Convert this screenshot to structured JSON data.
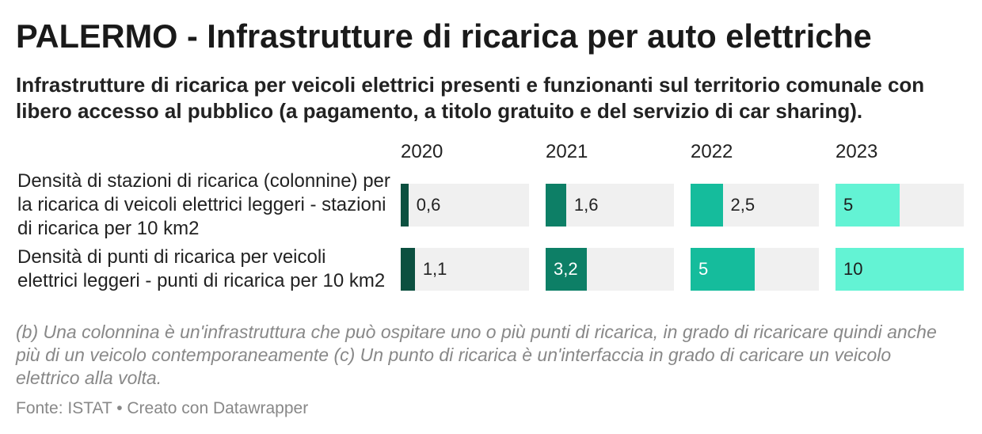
{
  "chart_data": {
    "type": "bar",
    "title": "PALERMO - Infrastrutture di ricarica per auto elettriche",
    "subtitle": "Infrastrutture di ricarica per veicoli elettrici presenti e funzionanti sul territorio comunale con libero accesso al pubblico (a pagamento, a titolo gratuito e del servizio di car sharing).",
    "categories": [
      "2020",
      "2021",
      "2022",
      "2023"
    ],
    "series": [
      {
        "name": "Densità di stazioni di ricarica (colonnine) per\nla ricarica di veicoli elettrici leggeri - stazioni\ndi ricarica per 10 km2",
        "values": [
          0.6,
          1.6,
          2.5,
          5
        ],
        "value_labels": [
          "0,6",
          "1,6",
          "2,5",
          "5"
        ]
      },
      {
        "name": "Densità di punti di ricarica per veicoli\nelettrici leggeri - punti di ricarica per 10 km2",
        "values": [
          1.1,
          3.2,
          5,
          10
        ],
        "value_labels": [
          "1,1",
          "3,2",
          "5",
          "10"
        ]
      }
    ],
    "xlim": [
      0,
      10
    ],
    "colors": [
      "#0c5040",
      "#0d7f66",
      "#15bc9c",
      "#63f3d4"
    ],
    "label_colors_inside": [
      "#ffffff",
      "#ffffff",
      "#ffffff",
      "#1d1d1d"
    ],
    "label_color_outside": "#222222",
    "track_color": "#f0f0f0",
    "note": "(b) Una colonnina è un'infrastruttura che può ospitare uno o più punti di ricarica, in grado di ricaricare quindi anche\npiù di un veicolo contemporaneamente (c) Un punto di ricarica è un'interfaccia in grado di caricare un veicolo\nelettrico alla volta.",
    "source": "Fonte: ISTAT • Creato con Datawrapper"
  }
}
